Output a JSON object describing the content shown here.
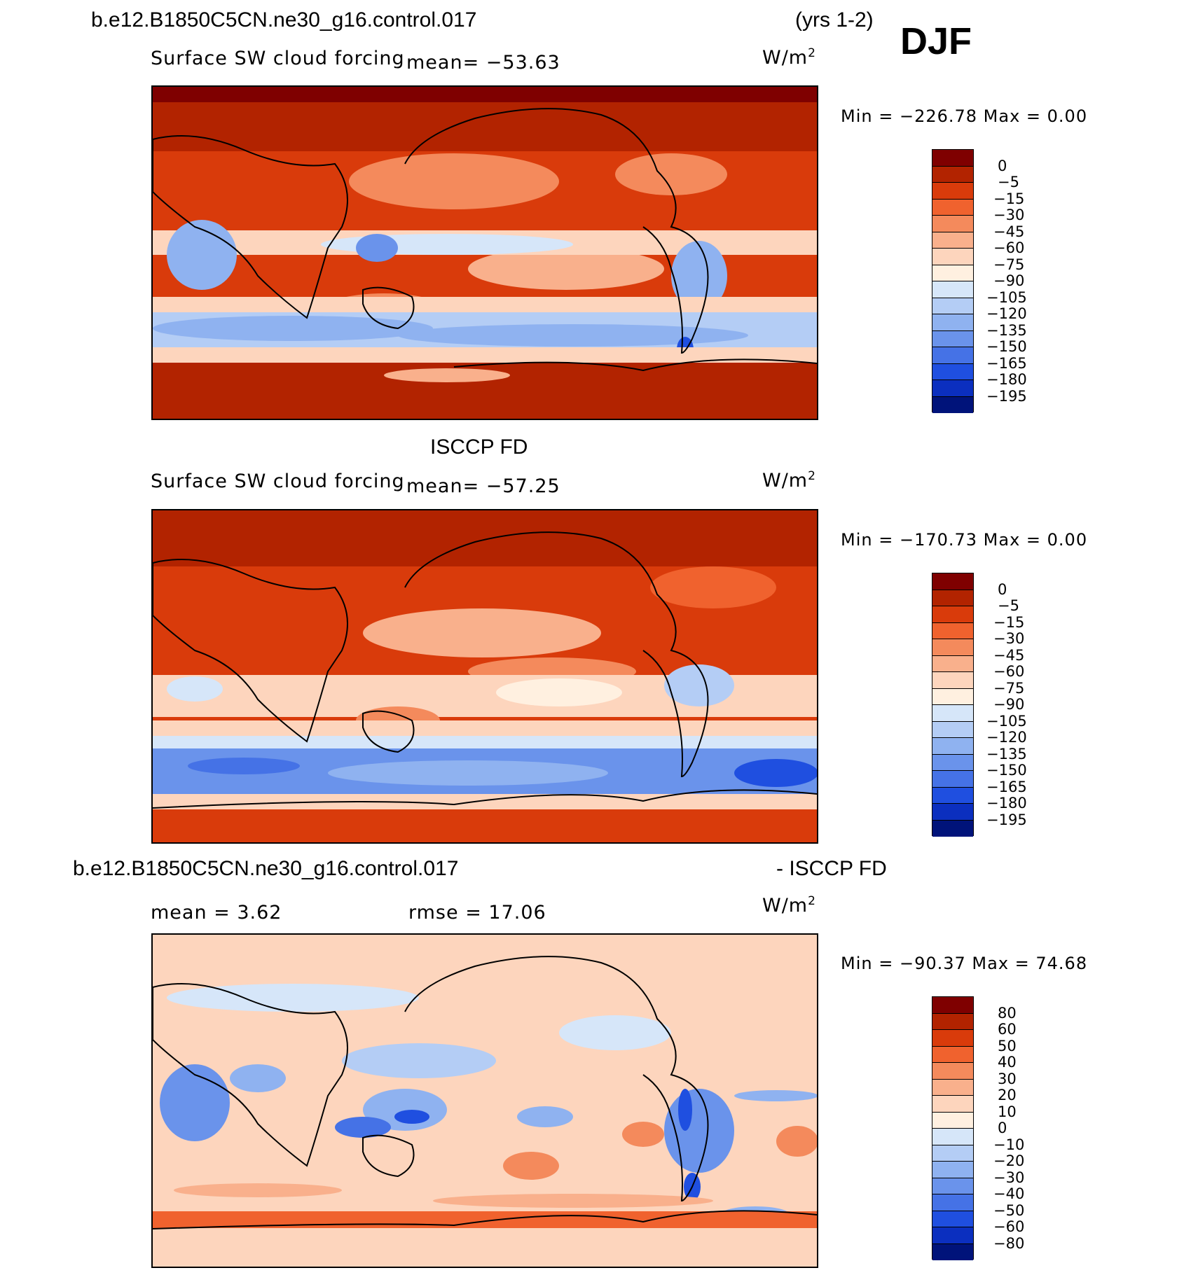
{
  "header": {
    "case_name": "b.e12.B1850C5CN.ne30_g16.control.017",
    "years": "(yrs 1-2)",
    "season": "DJF"
  },
  "panels": [
    {
      "title": "",
      "variable": "Surface SW cloud forcing",
      "stat_text": "mean= −53.63",
      "units": "W/m",
      "units_sup": "2",
      "minmax": "Min = −226.78 Max =    0.00",
      "colorbar": {
        "labels": [
          "0",
          "−5",
          "−15",
          "−30",
          "−45",
          "−60",
          "−75",
          "−90",
          "−105",
          "−120",
          "−135",
          "−150",
          "−165",
          "−180",
          "−195"
        ],
        "colors": [
          "#7f0000",
          "#b22300",
          "#d93b0b",
          "#f0622e",
          "#f48a5c",
          "#f9b08c",
          "#fdd5bd",
          "#fff0e0",
          "#d6e6f9",
          "#b4cdf5",
          "#8fb2f0",
          "#6a93eb",
          "#4572e6",
          "#1f4fe0",
          "#0b2fbf",
          "#00137a"
        ]
      }
    },
    {
      "title": "ISCCP FD",
      "variable": "Surface SW cloud forcing",
      "stat_text": "mean= −57.25",
      "units": "W/m",
      "units_sup": "2",
      "minmax": "Min = −170.73 Max =    0.00",
      "colorbar": {
        "labels": [
          "0",
          "−5",
          "−15",
          "−30",
          "−45",
          "−60",
          "−75",
          "−90",
          "−105",
          "−120",
          "−135",
          "−150",
          "−165",
          "−180",
          "−195"
        ],
        "colors": [
          "#7f0000",
          "#b22300",
          "#d93b0b",
          "#f0622e",
          "#f48a5c",
          "#f9b08c",
          "#fdd5bd",
          "#fff0e0",
          "#d6e6f9",
          "#b4cdf5",
          "#8fb2f0",
          "#6a93eb",
          "#4572e6",
          "#1f4fe0",
          "#0b2fbf",
          "#00137a"
        ]
      }
    },
    {
      "title_left": "b.e12.B1850C5CN.ne30_g16.control.017",
      "title_right": "- ISCCP FD",
      "mean_text": "mean =    3.62",
      "rmse_text": "rmse =   17.06",
      "units": "W/m",
      "units_sup": "2",
      "minmax": "Min = −90.37 Max =   74.68",
      "colorbar": {
        "labels": [
          "80",
          "60",
          "50",
          "40",
          "30",
          "20",
          "10",
          "0",
          "−10",
          "−20",
          "−30",
          "−40",
          "−50",
          "−60",
          "−80"
        ],
        "colors": [
          "#7f0000",
          "#b22300",
          "#d93b0b",
          "#f0622e",
          "#f48a5c",
          "#f9b08c",
          "#fdd5bd",
          "#fff0e0",
          "#d6e6f9",
          "#b4cdf5",
          "#8fb2f0",
          "#6a93eb",
          "#4572e6",
          "#1f4fe0",
          "#0b2fbf",
          "#00137a"
        ]
      }
    }
  ],
  "chart_data": [
    {
      "type": "heatmap",
      "title": "Surface SW cloud forcing",
      "mean": -53.63,
      "min": -226.78,
      "max": 0.0,
      "units": "W/m2",
      "color_levels": [
        0,
        -5,
        -15,
        -30,
        -45,
        -60,
        -75,
        -90,
        -105,
        -120,
        -135,
        -150,
        -165,
        -180,
        -195
      ]
    },
    {
      "type": "heatmap",
      "title": "ISCCP FD Surface SW cloud forcing",
      "mean": -57.25,
      "min": -170.73,
      "max": 0.0,
      "units": "W/m2",
      "color_levels": [
        0,
        -5,
        -15,
        -30,
        -45,
        -60,
        -75,
        -90,
        -105,
        -120,
        -135,
        -150,
        -165,
        -180,
        -195
      ]
    },
    {
      "type": "heatmap",
      "title": "b.e12.B1850C5CN.ne30_g16.control.017 - ISCCP FD",
      "mean": 3.62,
      "rmse": 17.06,
      "min": -90.37,
      "max": 74.68,
      "units": "W/m2",
      "color_levels": [
        80,
        60,
        50,
        40,
        30,
        20,
        10,
        0,
        -10,
        -20,
        -30,
        -40,
        -50,
        -60,
        -80
      ]
    }
  ]
}
